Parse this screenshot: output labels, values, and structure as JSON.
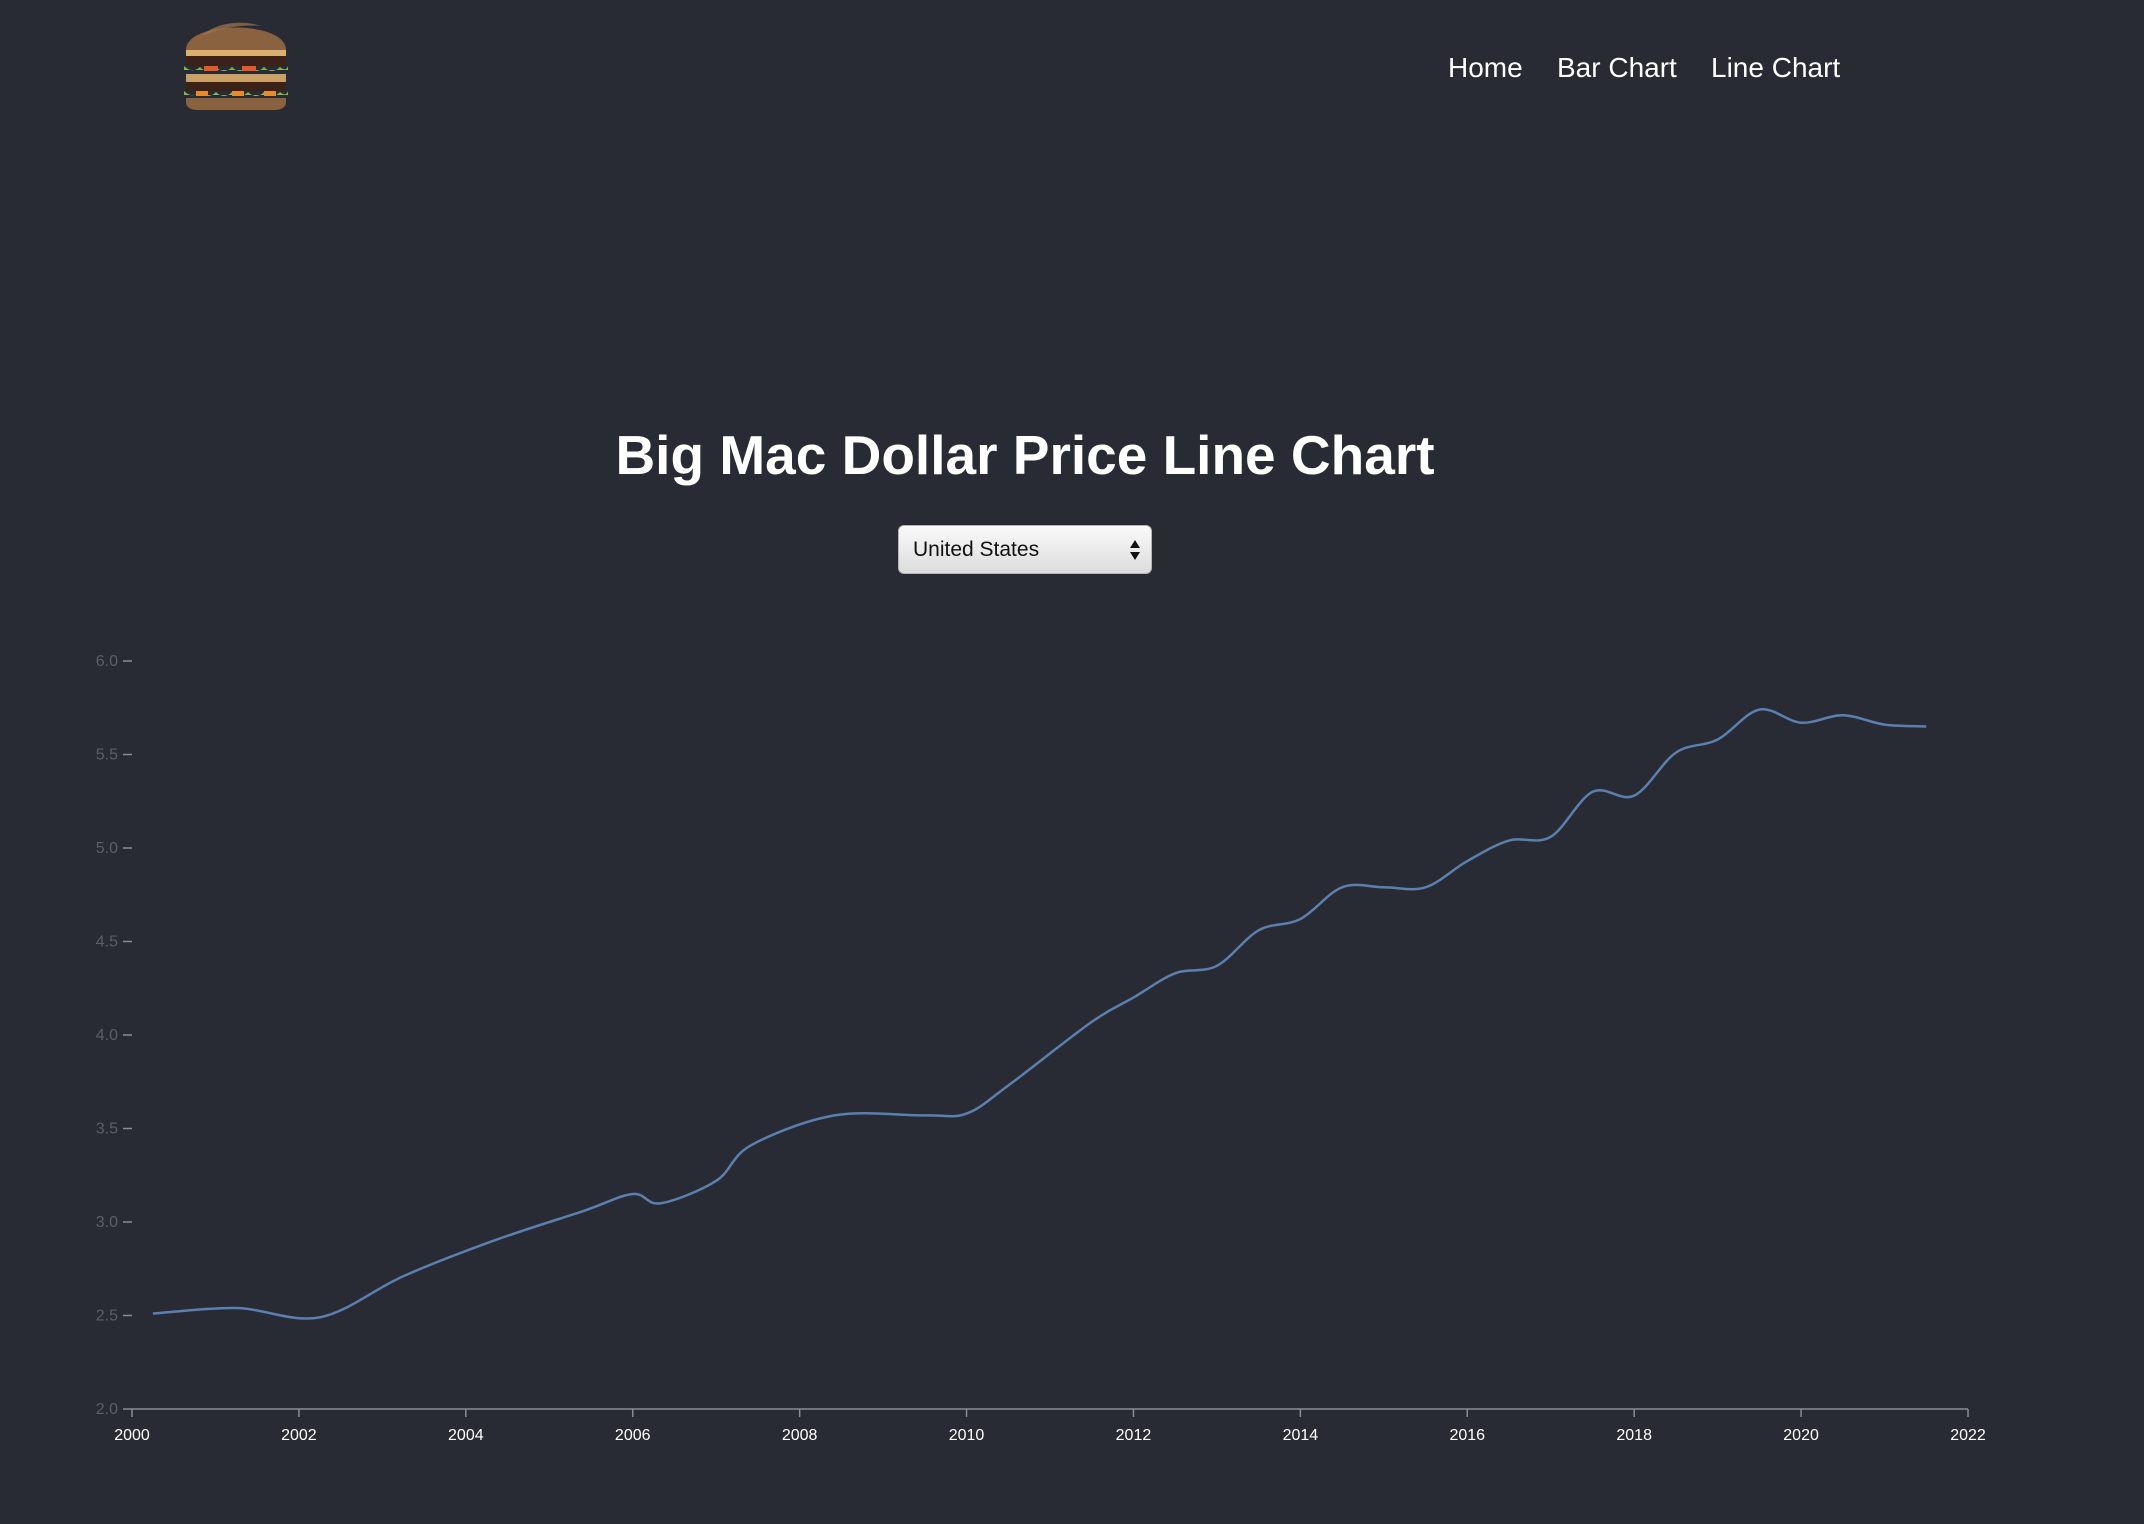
{
  "nav": {
    "items": [
      {
        "label": "Home"
      },
      {
        "label": "Bar Chart"
      },
      {
        "label": "Line Chart"
      }
    ]
  },
  "page": {
    "title": "Big Mac Dollar Price Line Chart"
  },
  "country_select": {
    "value": "United States"
  },
  "colors": {
    "background": "#282b33",
    "line": "#5b7fae",
    "axis": "#8a8d94",
    "y_tick_label": "#5c5f66",
    "x_tick_label": "#ffffff",
    "text": "#ffffff"
  },
  "chart_data": {
    "type": "line",
    "title": "Big Mac Dollar Price Line Chart",
    "xlabel": "",
    "ylabel": "",
    "xlim": [
      2000,
      2022
    ],
    "ylim": [
      2.0,
      6.0
    ],
    "x_ticks": [
      "2000",
      "2002",
      "2004",
      "2006",
      "2008",
      "2010",
      "2012",
      "2014",
      "2016",
      "2018",
      "2020",
      "2022"
    ],
    "y_ticks": [
      "2.0",
      "2.5",
      "3.0",
      "3.5",
      "4.0",
      "4.5",
      "5.0",
      "5.5",
      "6.0"
    ],
    "grid": false,
    "legend": "none",
    "series": [
      {
        "x": [
          "2000-04",
          "2001-04",
          "2002-04",
          "2003-04",
          "2004-05",
          "2005-06",
          "2006-01",
          "2006-05",
          "2007-01",
          "2007-06",
          "2008-06",
          "2009-07",
          "2010-01",
          "2010-07",
          "2011-07",
          "2012-01",
          "2012-07",
          "2013-01",
          "2013-07",
          "2014-01",
          "2014-07",
          "2015-01",
          "2015-07",
          "2016-01",
          "2016-07",
          "2017-01",
          "2017-07",
          "2018-01",
          "2018-07",
          "2019-01",
          "2019-07",
          "2020-01",
          "2020-07",
          "2021-01",
          "2021-07"
        ],
        "values": [
          2.51,
          2.54,
          2.49,
          2.71,
          2.9,
          3.06,
          3.15,
          3.1,
          3.22,
          3.41,
          3.57,
          3.57,
          3.58,
          3.73,
          4.07,
          4.2,
          4.33,
          4.37,
          4.56,
          4.62,
          4.79,
          4.79,
          4.79,
          4.93,
          5.04,
          5.06,
          5.3,
          5.28,
          5.51,
          5.58,
          5.74,
          5.67,
          5.71,
          5.66,
          5.65
        ]
      }
    ]
  }
}
